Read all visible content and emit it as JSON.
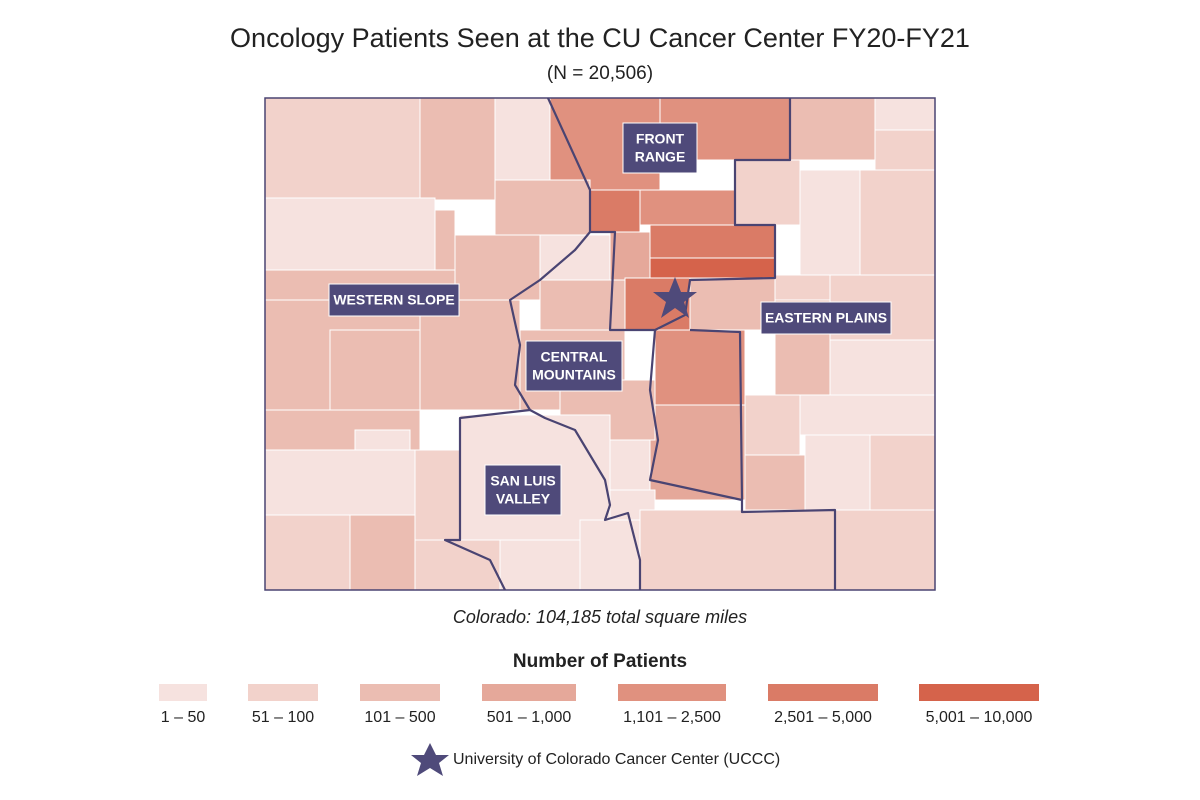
{
  "title": "Oncology Patients Seen at the CU Cancer Center FY20-FY21",
  "subtitle": "(N = 20,506)",
  "regions": [
    {
      "lines": [
        "FRONT",
        "RANGE"
      ]
    },
    {
      "lines": [
        "WESTERN SLOPE"
      ]
    },
    {
      "lines": [
        "EASTERN PLAINS"
      ]
    },
    {
      "lines": [
        "CENTRAL",
        "MOUNTAINS"
      ]
    },
    {
      "lines": [
        "SAN LUIS",
        "VALLEY"
      ]
    }
  ],
  "caption": "Colorado: 104,185 total square miles",
  "legend": {
    "title": "Number of Patients",
    "bins": [
      {
        "label": "1 – 50",
        "color": "#f6e2df"
      },
      {
        "label": "51 – 100",
        "color": "#f2d2cb"
      },
      {
        "label": "101 – 500",
        "color": "#ebbdb2"
      },
      {
        "label": "501 – 1,000",
        "color": "#e5a89a"
      },
      {
        "label": "1,101 – 2,500",
        "color": "#e0917f"
      },
      {
        "label": "2,501 – 5,000",
        "color": "#da7b66"
      },
      {
        "label": "5,001 – 10,000",
        "color": "#d5634b"
      }
    ]
  },
  "marker_label": "University of Colorado Cancer Center (UCCC)"
}
